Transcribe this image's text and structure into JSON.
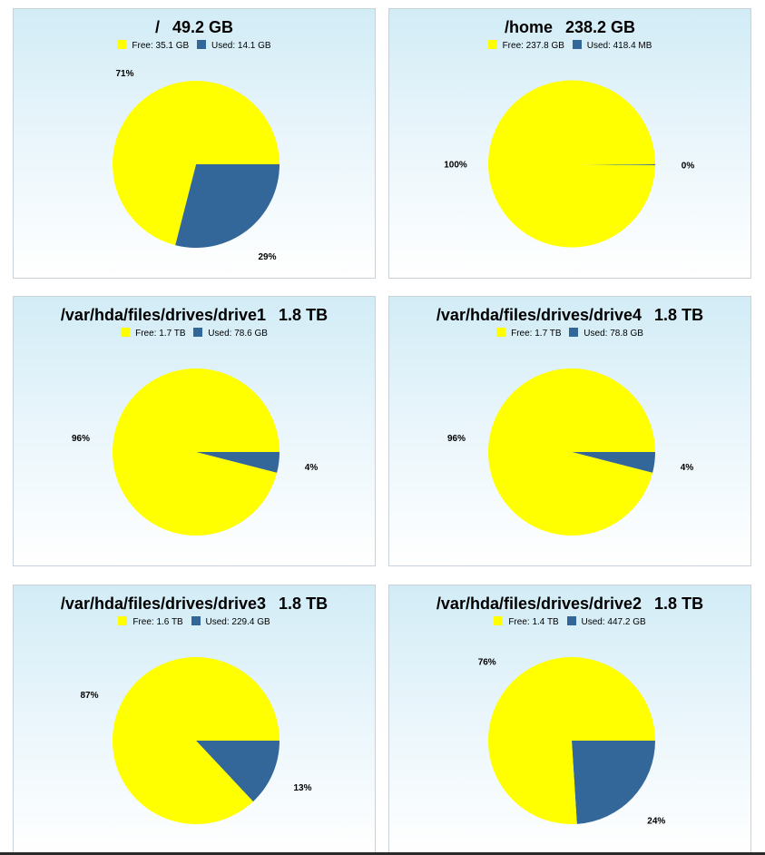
{
  "colors": {
    "free": "#ffff00",
    "used": "#336699"
  },
  "chart_data": [
    {
      "type": "pie",
      "title_path": "/",
      "title_size": "49.2 GB",
      "legend": [
        {
          "label": "Free: 35.1 GB"
        },
        {
          "label": "Used: 14.1 GB"
        }
      ],
      "slices": [
        {
          "name": "Free",
          "value": 71,
          "pct_label": "71%"
        },
        {
          "name": "Used",
          "value": 29,
          "pct_label": "29%"
        }
      ]
    },
    {
      "type": "pie",
      "title_path": "/home",
      "title_size": "238.2 GB",
      "legend": [
        {
          "label": "Free: 237.8 GB"
        },
        {
          "label": "Used: 418.4 MB"
        }
      ],
      "slices": [
        {
          "name": "Free",
          "value": 100,
          "pct_label": "100%"
        },
        {
          "name": "Used",
          "value": 0.17,
          "pct_label": "0%"
        }
      ]
    },
    {
      "type": "pie",
      "title_path": "/var/hda/files/drives/drive1",
      "title_size": "1.8 TB",
      "legend": [
        {
          "label": "Free: 1.7 TB"
        },
        {
          "label": "Used: 78.6 GB"
        }
      ],
      "slices": [
        {
          "name": "Free",
          "value": 96,
          "pct_label": "96%"
        },
        {
          "name": "Used",
          "value": 4,
          "pct_label": "4%"
        }
      ]
    },
    {
      "type": "pie",
      "title_path": "/var/hda/files/drives/drive4",
      "title_size": "1.8 TB",
      "legend": [
        {
          "label": "Free: 1.7 TB"
        },
        {
          "label": "Used: 78.8 GB"
        }
      ],
      "slices": [
        {
          "name": "Free",
          "value": 96,
          "pct_label": "96%"
        },
        {
          "name": "Used",
          "value": 4,
          "pct_label": "4%"
        }
      ]
    },
    {
      "type": "pie",
      "title_path": "/var/hda/files/drives/drive3",
      "title_size": "1.8 TB",
      "legend": [
        {
          "label": "Free: 1.6 TB"
        },
        {
          "label": "Used: 229.4 GB"
        }
      ],
      "slices": [
        {
          "name": "Free",
          "value": 87,
          "pct_label": "87%"
        },
        {
          "name": "Used",
          "value": 13,
          "pct_label": "13%"
        }
      ]
    },
    {
      "type": "pie",
      "title_path": "/var/hda/files/drives/drive2",
      "title_size": "1.8 TB",
      "legend": [
        {
          "label": "Free: 1.4 TB"
        },
        {
          "label": "Used: 447.2 GB"
        }
      ],
      "slices": [
        {
          "name": "Free",
          "value": 76,
          "pct_label": "76%"
        },
        {
          "name": "Used",
          "value": 24,
          "pct_label": "24%"
        }
      ]
    }
  ]
}
